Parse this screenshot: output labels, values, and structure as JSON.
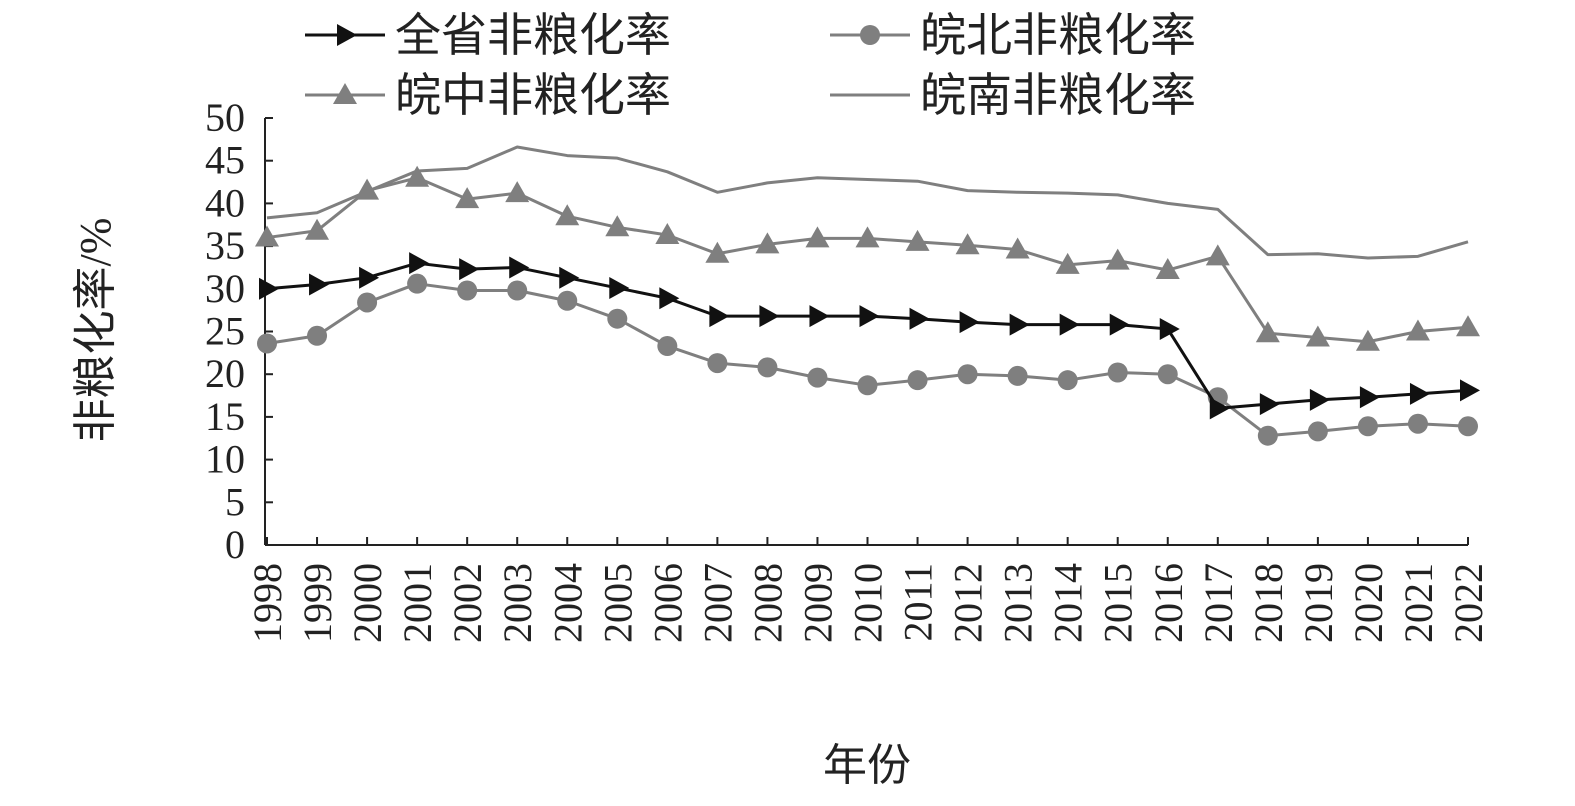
{
  "chart_data": {
    "type": "line",
    "title": "",
    "xlabel": "年份",
    "ylabel": "非粮化率/%",
    "ylim": [
      0,
      50
    ],
    "yticks": [
      "0",
      "5",
      "10",
      "15",
      "20",
      "25",
      "30",
      "35",
      "40",
      "45",
      "50"
    ],
    "x": [
      "1998",
      "1999",
      "2000",
      "2001",
      "2002",
      "2003",
      "2004",
      "2005",
      "2006",
      "2007",
      "2008",
      "2009",
      "2010",
      "2011",
      "2012",
      "2013",
      "2014",
      "2015",
      "2016",
      "2017",
      "2018",
      "2019",
      "2020",
      "2021",
      "2022"
    ],
    "grid": false,
    "legend_position": "top",
    "series": [
      {
        "name": "全省非粮化率",
        "marker": "triangle-right",
        "color": "#111111",
        "values": [
          30.0,
          30.5,
          31.3,
          33.0,
          32.3,
          32.5,
          31.3,
          30.1,
          28.9,
          26.8,
          26.8,
          26.8,
          26.8,
          26.5,
          26.1,
          25.8,
          25.8,
          25.8,
          25.3,
          16.0,
          16.5,
          17.0,
          17.3,
          17.7,
          18.1
        ]
      },
      {
        "name": "皖北非粮化率",
        "marker": "circle",
        "color": "#7f7f7f",
        "values": [
          23.6,
          24.5,
          28.4,
          30.6,
          29.8,
          29.8,
          28.6,
          26.5,
          23.3,
          21.3,
          20.8,
          19.6,
          18.7,
          19.3,
          20.0,
          19.8,
          19.3,
          20.2,
          20.0,
          17.3,
          12.8,
          13.3,
          13.9,
          14.2,
          13.9
        ]
      },
      {
        "name": "皖中非粮化率",
        "marker": "triangle-up",
        "color": "#7f7f7f",
        "values": [
          36.0,
          36.8,
          41.5,
          43.0,
          40.5,
          41.2,
          38.5,
          37.2,
          36.3,
          34.1,
          35.2,
          35.9,
          35.9,
          35.5,
          35.1,
          34.6,
          32.8,
          33.3,
          32.2,
          33.8,
          24.8,
          24.3,
          23.8,
          25.0,
          25.5
        ]
      },
      {
        "name": "皖南非粮化率",
        "marker": "none",
        "color": "#7f7f7f",
        "values": [
          38.3,
          38.9,
          41.4,
          43.8,
          44.1,
          46.6,
          45.6,
          45.3,
          43.7,
          41.3,
          42.4,
          43.0,
          42.8,
          42.6,
          41.5,
          41.3,
          41.2,
          41.0,
          40.0,
          39.3,
          34.0,
          34.1,
          33.6,
          33.8,
          35.5
        ]
      }
    ]
  }
}
